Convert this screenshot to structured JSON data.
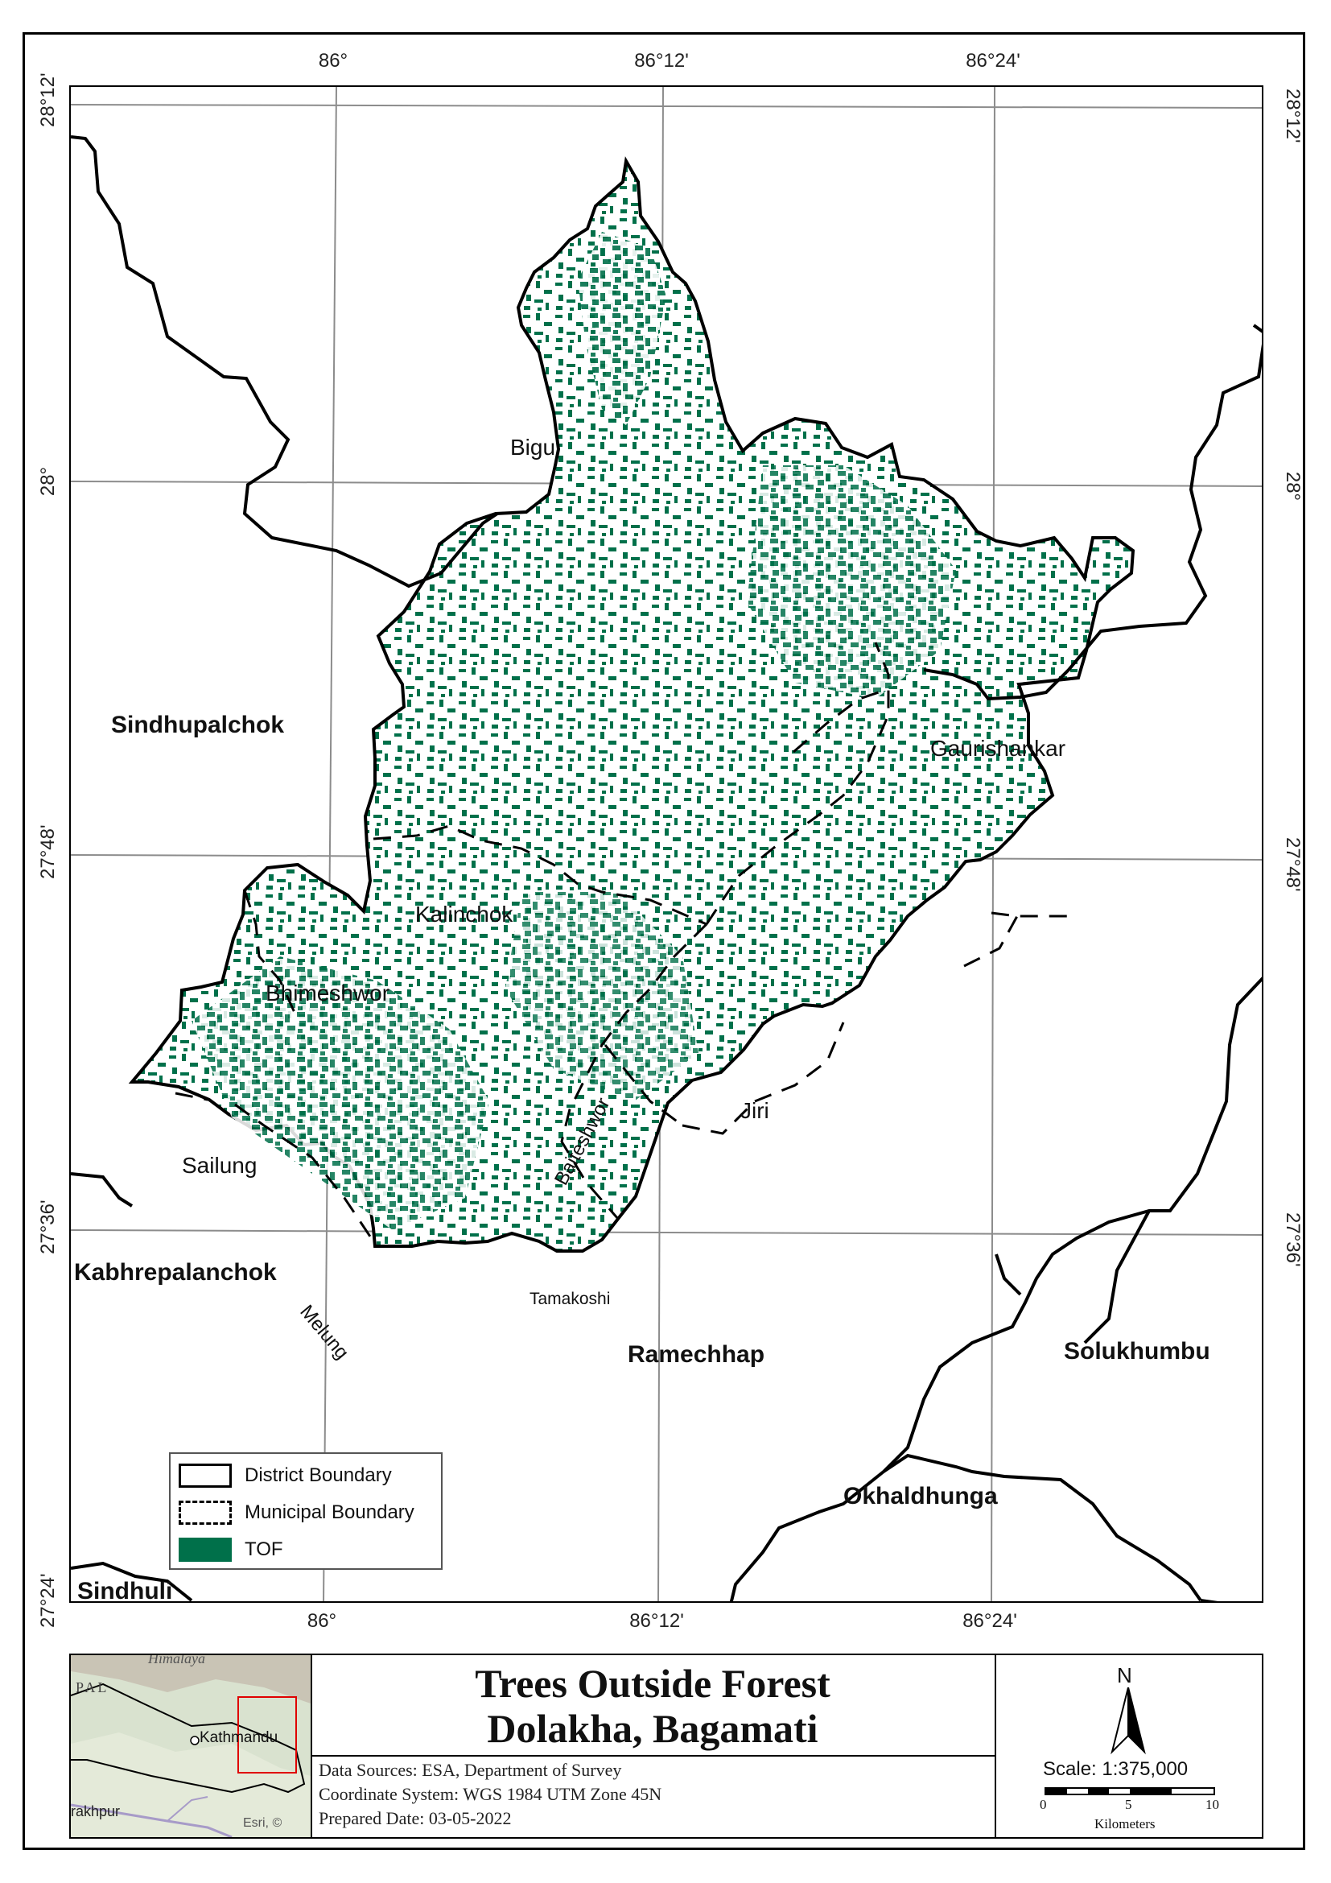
{
  "map": {
    "coords": {
      "lon_top": [
        "86°",
        "86°12'",
        "86°24'"
      ],
      "lon_bottom": [
        "86°",
        "86°12'",
        "86°24'"
      ],
      "lat_left": [
        "28°12'",
        "28°",
        "27°48'",
        "27°36'",
        "27°24'"
      ],
      "lat_right": [
        "28°12'",
        "28°",
        "27°48'",
        "27°36'"
      ]
    },
    "districts": {
      "sindhupalchok": "Sindhupalchok",
      "kabhrepalanchok": "Kabhrepalanchok",
      "sindhuli": "Sindhuli",
      "ramechhap": "Ramechhap",
      "solukhumbu": "Solukhumbu",
      "okhaldhunga": "Okhaldhunga"
    },
    "municipalities": {
      "bigu": "Bigu",
      "gaurishankar": "Gaurishankar",
      "kalinchok": "Kalinchok",
      "bhimeshwor": "Bhimeshwor",
      "sailung": "Sailung",
      "jiri": "Jiri",
      "baiteshwor": "Baiteshwor",
      "melung": "Melung",
      "tamakoshi": "Tamakoshi"
    },
    "colors": {
      "tof": "#00704a",
      "boundary": "#000000",
      "grid": "#8c8c8c"
    }
  },
  "legend": {
    "items": [
      {
        "label": "District Boundary",
        "symbol": "solid-outline"
      },
      {
        "label": "Municipal Boundary",
        "symbol": "dashed-outline"
      },
      {
        "label": "TOF",
        "symbol": "green-fill"
      }
    ]
  },
  "inset": {
    "labels": {
      "himalaya": "Himalaya",
      "nepal": "PAL",
      "kathmandu": "Kathmandu",
      "gorakhpur": "rakhpur",
      "attribution": "Esri, ©"
    }
  },
  "title": {
    "line1": "Trees Outside Forest",
    "line2": "Dolakha, Bagamati",
    "data_sources": "Data Sources: ESA, Department of Survey",
    "coordinate_system": "Coordinate System: WGS 1984 UTM Zone 45N",
    "prepared_date": "Prepared Date: 03-05-2022"
  },
  "scale": {
    "north_label": "N",
    "text": "Scale: 1:375,000",
    "ticks": [
      "0",
      "5",
      "10"
    ],
    "unit": "Kilometers"
  }
}
